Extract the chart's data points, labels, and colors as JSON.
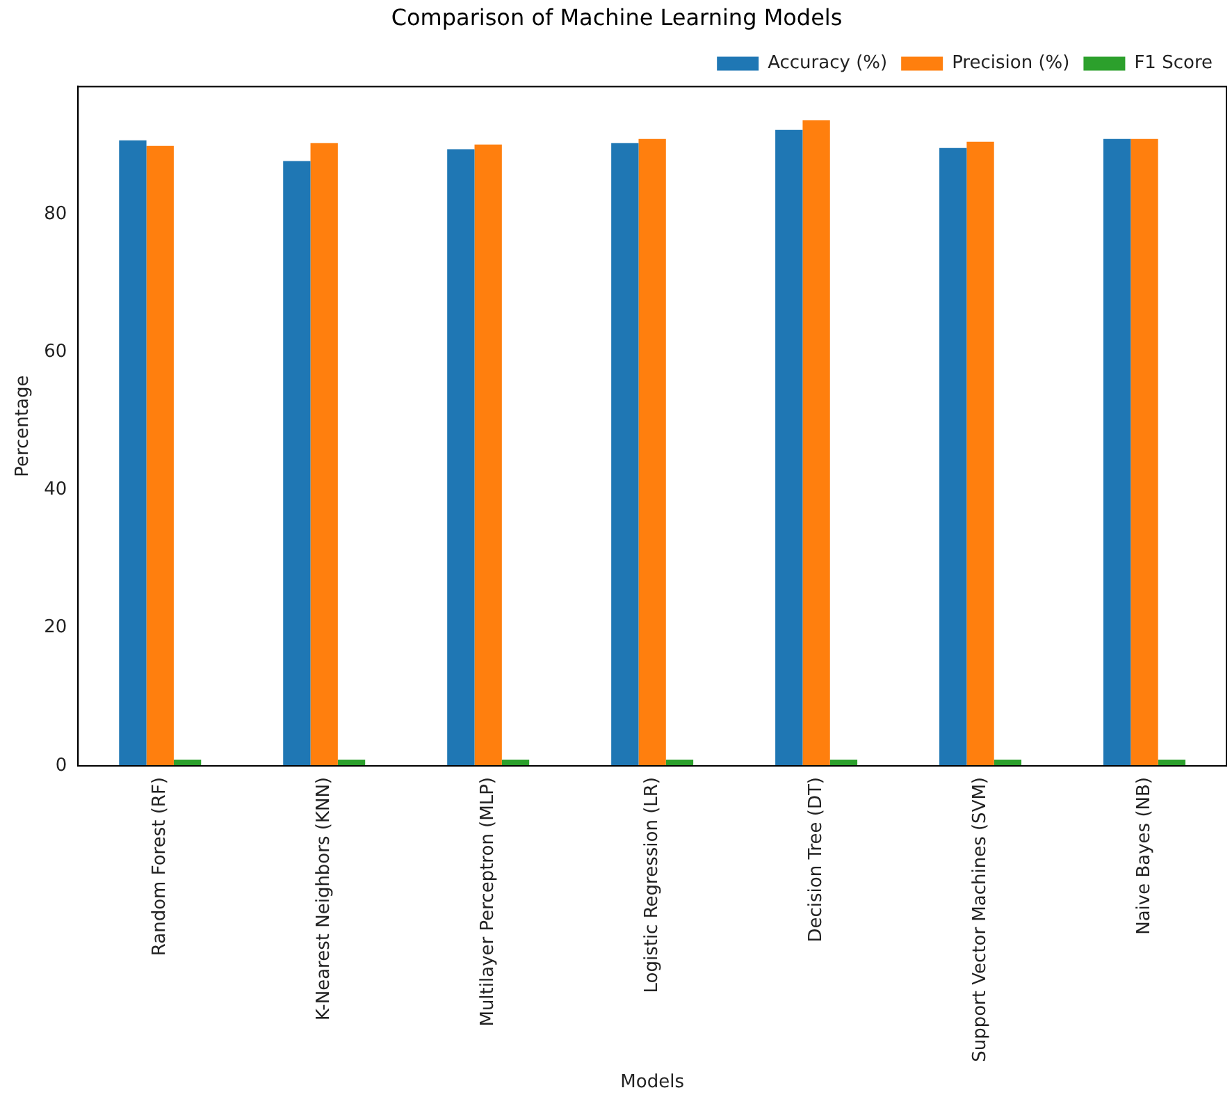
{
  "chart_data": {
    "type": "bar",
    "title": "Comparison of Machine Learning Models",
    "xlabel": "Models",
    "ylabel": "Percentage",
    "categories": [
      "Random Forest (RF)",
      "K-Nearest Neighbors (KNN)",
      "Multilayer Perceptron (MLP)",
      "Logistic Regression (LR)",
      "Decision Tree (DT)",
      "Support Vector Machines (SVM)",
      "Naive Bayes (NB)"
    ],
    "series": [
      {
        "name": "Accuracy (%)",
        "color": "#1f77b4",
        "values": [
          90.7,
          87.7,
          89.4,
          90.3,
          92.2,
          89.6,
          90.9
        ]
      },
      {
        "name": "Precision (%)",
        "color": "#ff7f0e",
        "values": [
          89.9,
          90.3,
          90.1,
          90.9,
          93.6,
          90.5,
          90.9
        ]
      },
      {
        "name": "F1 Score",
        "color": "#2ca02c",
        "values": [
          0.9,
          0.9,
          0.9,
          0.9,
          0.9,
          0.9,
          0.9
        ]
      }
    ],
    "ylim": [
      0,
      98.5
    ],
    "yticks": [
      0,
      20,
      40,
      60,
      80
    ],
    "grid": false,
    "legend": "top right"
  }
}
